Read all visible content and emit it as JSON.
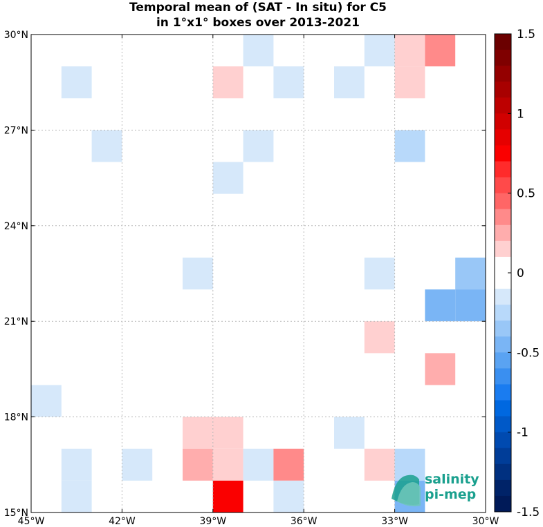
{
  "chart_data": {
    "type": "heatmap",
    "title_line1": "Temporal mean of (SAT - In situ) for C5",
    "title_line2": "in 1°x1° boxes over 2013-2021",
    "xlim": [
      -45,
      -30
    ],
    "ylim": [
      15,
      30
    ],
    "x_ticks": [
      {
        "value": -45,
        "label": "45°W"
      },
      {
        "value": -42,
        "label": "42°W"
      },
      {
        "value": -39,
        "label": "39°W"
      },
      {
        "value": -36,
        "label": "36°W"
      },
      {
        "value": -33,
        "label": "33°W"
      },
      {
        "value": -30,
        "label": "30°W"
      }
    ],
    "y_ticks": [
      {
        "value": 15,
        "label": "15°N"
      },
      {
        "value": 18,
        "label": "18°N"
      },
      {
        "value": 21,
        "label": "21°N"
      },
      {
        "value": 24,
        "label": "24°N"
      },
      {
        "value": 27,
        "label": "27°N"
      },
      {
        "value": 30,
        "label": "30°N"
      }
    ],
    "grid": true,
    "colorbar": {
      "range": [
        -1.5,
        1.5
      ],
      "n_levels": 30,
      "tick_labels": [
        {
          "value": 1.5,
          "label": "1.5"
        },
        {
          "value": 1,
          "label": "1"
        },
        {
          "value": 0.5,
          "label": "0.5"
        },
        {
          "value": 0,
          "label": "0"
        },
        {
          "value": -0.5,
          "label": "-0.5"
        },
        {
          "value": -1,
          "label": "-1"
        },
        {
          "value": -1.5,
          "label": "-1.5"
        }
      ],
      "colors_high_to_low": [
        "#6b0000",
        "#7f0000",
        "#940000",
        "#a80000",
        "#bd0000",
        "#d10000",
        "#e60000",
        "#fa0000",
        "#ff2b2b",
        "#ff4a4a",
        "#ff6666",
        "#ff8a8a",
        "#ffadad",
        "#ffd0d0",
        "#ffffff",
        "#ffffff",
        "#d6e8fa",
        "#b8d9fa",
        "#99c7f7",
        "#7ab5f5",
        "#5aa3f2",
        "#3a8ff0",
        "#1a7cf0",
        "#0068e0",
        "#0059c8",
        "#004ab0",
        "#003d98",
        "#003080",
        "#002368",
        "#001a58"
      ]
    },
    "cells": [
      {
        "lon": -38,
        "lat": 29,
        "value": -0.1
      },
      {
        "lon": -34,
        "lat": 29,
        "value": -0.1
      },
      {
        "lon": -33,
        "lat": 29,
        "value": 0.15
      },
      {
        "lon": -32,
        "lat": 29,
        "value": 0.3
      },
      {
        "lon": -44,
        "lat": 28,
        "value": -0.1
      },
      {
        "lon": -39,
        "lat": 28,
        "value": 0.15
      },
      {
        "lon": -37,
        "lat": 28,
        "value": -0.1
      },
      {
        "lon": -35,
        "lat": 28,
        "value": -0.1
      },
      {
        "lon": -33,
        "lat": 28,
        "value": 0.15
      },
      {
        "lon": -43,
        "lat": 26,
        "value": -0.1
      },
      {
        "lon": -38,
        "lat": 26,
        "value": -0.1
      },
      {
        "lon": -33,
        "lat": 26,
        "value": -0.2
      },
      {
        "lon": -39,
        "lat": 25,
        "value": -0.1
      },
      {
        "lon": -40,
        "lat": 22,
        "value": -0.1
      },
      {
        "lon": -34,
        "lat": 22,
        "value": -0.1
      },
      {
        "lon": -31,
        "lat": 22,
        "value": -0.3
      },
      {
        "lon": -32,
        "lat": 21,
        "value": -0.45
      },
      {
        "lon": -31,
        "lat": 21,
        "value": -0.45
      },
      {
        "lon": -34,
        "lat": 20,
        "value": 0.15
      },
      {
        "lon": -32,
        "lat": 19,
        "value": 0.25
      },
      {
        "lon": -45,
        "lat": 18,
        "value": -0.1
      },
      {
        "lon": -40,
        "lat": 17,
        "value": 0.15
      },
      {
        "lon": -39,
        "lat": 17,
        "value": 0.15
      },
      {
        "lon": -35,
        "lat": 17,
        "value": -0.1
      },
      {
        "lon": -44,
        "lat": 16,
        "value": -0.1
      },
      {
        "lon": -42,
        "lat": 16,
        "value": -0.1
      },
      {
        "lon": -40,
        "lat": 16,
        "value": 0.25
      },
      {
        "lon": -39,
        "lat": 16,
        "value": 0.15
      },
      {
        "lon": -38,
        "lat": 16,
        "value": -0.1
      },
      {
        "lon": -37,
        "lat": 16,
        "value": 0.4
      },
      {
        "lon": -34,
        "lat": 16,
        "value": 0.15
      },
      {
        "lon": -33,
        "lat": 16,
        "value": -0.2
      },
      {
        "lon": -44,
        "lat": 15,
        "value": -0.1
      },
      {
        "lon": -39,
        "lat": 15,
        "value": 0.75
      },
      {
        "lon": -37,
        "lat": 15,
        "value": -0.1
      },
      {
        "lon": -33,
        "lat": 15,
        "value": -0.45
      }
    ]
  },
  "logo": {
    "line1": "salinity",
    "line2": "pi-mep",
    "color": "#1aa08e"
  }
}
